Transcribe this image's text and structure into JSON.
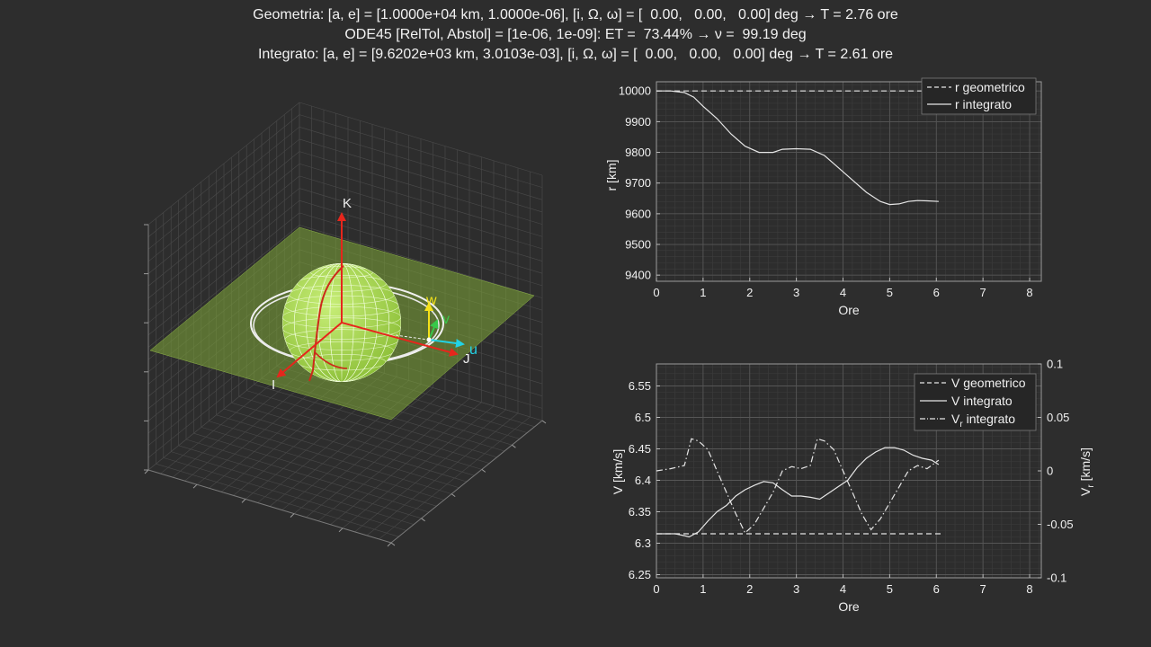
{
  "header": {
    "line1": "Geometria: [a, e] = [1.0000e+04 km, 1.0000e-06], [i, Ω, ω] = [  0.00,   0.00,   0.00] deg → T = 2.76 ore",
    "line2": "ODE45 [RelTol, Abstol] = [1e-06, 1e-09]: ET =  73.44% → ν =  99.19 deg",
    "line3": "Integrato: [a, e] = [9.6202e+03 km, 3.0103e-03], [i, Ω, ω] = [  0.00,   0.00,   0.00] deg → T = 2.61 ore"
  },
  "scene3d": {
    "axis_labels": {
      "I": "I",
      "J": "J",
      "K": "K"
    },
    "frame_labels": {
      "u": "u",
      "v": "v",
      "w": "w"
    },
    "colors": {
      "plane": "#7fa838",
      "earth": "#a6d84e",
      "ijk": "#e6261c",
      "u": "#22d3e6",
      "v": "#37c84a",
      "w": "#f5e21a",
      "orbit": "#f0f0f0",
      "trace": "#cc2a1a"
    }
  },
  "chart_data": [
    {
      "type": "line",
      "xlabel": "Ore",
      "ylabel": "r [km]",
      "xlim": [
        0,
        8.25
      ],
      "ylim": [
        9380,
        10030
      ],
      "xticks": [
        0,
        1,
        2,
        3,
        4,
        5,
        6,
        7,
        8
      ],
      "yticks": [
        9400,
        9500,
        9600,
        9700,
        9800,
        9900,
        10000
      ],
      "grid": true,
      "legend_location": "top-right",
      "series": [
        {
          "name": "r geometrico",
          "style": "dashed",
          "x": [
            0,
            6.1
          ],
          "y": [
            10000,
            10000
          ]
        },
        {
          "name": "r integrato",
          "style": "solid",
          "x": [
            0,
            0.3,
            0.6,
            0.8,
            1.0,
            1.3,
            1.6,
            1.9,
            2.2,
            2.5,
            2.7,
            3.0,
            3.3,
            3.6,
            3.9,
            4.2,
            4.5,
            4.8,
            5.0,
            5.2,
            5.4,
            5.6,
            5.8,
            6.05
          ],
          "y": [
            10000,
            10000,
            9995,
            9980,
            9950,
            9910,
            9860,
            9820,
            9800,
            9800,
            9810,
            9812,
            9810,
            9790,
            9750,
            9710,
            9670,
            9640,
            9630,
            9632,
            9640,
            9643,
            9642,
            9640
          ]
        }
      ]
    },
    {
      "type": "line",
      "xlabel": "Ore",
      "ylabel": "V [km/s]",
      "ylabel_right": "Vr [km/s]",
      "xlim": [
        0,
        8.25
      ],
      "ylim": [
        6.245,
        6.585
      ],
      "ylim_right": [
        -0.1,
        0.1
      ],
      "xticks": [
        0,
        1,
        2,
        3,
        4,
        5,
        6,
        7,
        8
      ],
      "yticks": [
        6.25,
        6.3,
        6.35,
        6.4,
        6.45,
        6.5,
        6.55
      ],
      "yticks_right": [
        -0.1,
        -0.05,
        0,
        0.05,
        0.1
      ],
      "grid": true,
      "legend_location": "top-right",
      "series": [
        {
          "name": "V geometrico",
          "style": "dashed",
          "axis": "left",
          "x": [
            0,
            6.1
          ],
          "y": [
            6.315,
            6.315
          ]
        },
        {
          "name": "V integrato",
          "style": "solid",
          "axis": "left",
          "x": [
            0,
            0.4,
            0.6,
            0.7,
            0.9,
            1.1,
            1.3,
            1.5,
            1.7,
            1.9,
            2.1,
            2.3,
            2.5,
            2.7,
            2.9,
            3.1,
            3.3,
            3.5,
            3.7,
            3.9,
            4.1,
            4.3,
            4.5,
            4.7,
            4.9,
            5.1,
            5.3,
            5.5,
            5.7,
            5.9,
            6.05
          ],
          "y": [
            6.315,
            6.315,
            6.312,
            6.31,
            6.318,
            6.335,
            6.35,
            6.36,
            6.375,
            6.385,
            6.392,
            6.398,
            6.396,
            6.385,
            6.375,
            6.375,
            6.373,
            6.37,
            6.38,
            6.39,
            6.4,
            6.42,
            6.435,
            6.445,
            6.452,
            6.452,
            6.448,
            6.44,
            6.435,
            6.432,
            6.425
          ]
        },
        {
          "name": "Vr integrato",
          "legend_label": "V",
          "legend_sub": "r",
          "legend_suffix": " integrato",
          "style": "dashdot",
          "axis": "right",
          "x": [
            0,
            0.3,
            0.6,
            0.75,
            0.9,
            1.1,
            1.3,
            1.5,
            1.7,
            1.9,
            2.1,
            2.3,
            2.5,
            2.7,
            2.9,
            3.1,
            3.3,
            3.45,
            3.6,
            3.8,
            4.0,
            4.2,
            4.4,
            4.6,
            4.8,
            5.0,
            5.2,
            5.4,
            5.6,
            5.8,
            6.05
          ],
          "y": [
            0.0,
            0.002,
            0.005,
            0.03,
            0.028,
            0.02,
            0.0,
            -0.02,
            -0.04,
            -0.058,
            -0.05,
            -0.035,
            -0.02,
            0.0,
            0.004,
            0.002,
            0.005,
            0.03,
            0.028,
            0.02,
            0.0,
            -0.02,
            -0.04,
            -0.055,
            -0.045,
            -0.03,
            -0.015,
            0.0,
            0.005,
            0.002,
            0.01
          ]
        }
      ]
    }
  ]
}
